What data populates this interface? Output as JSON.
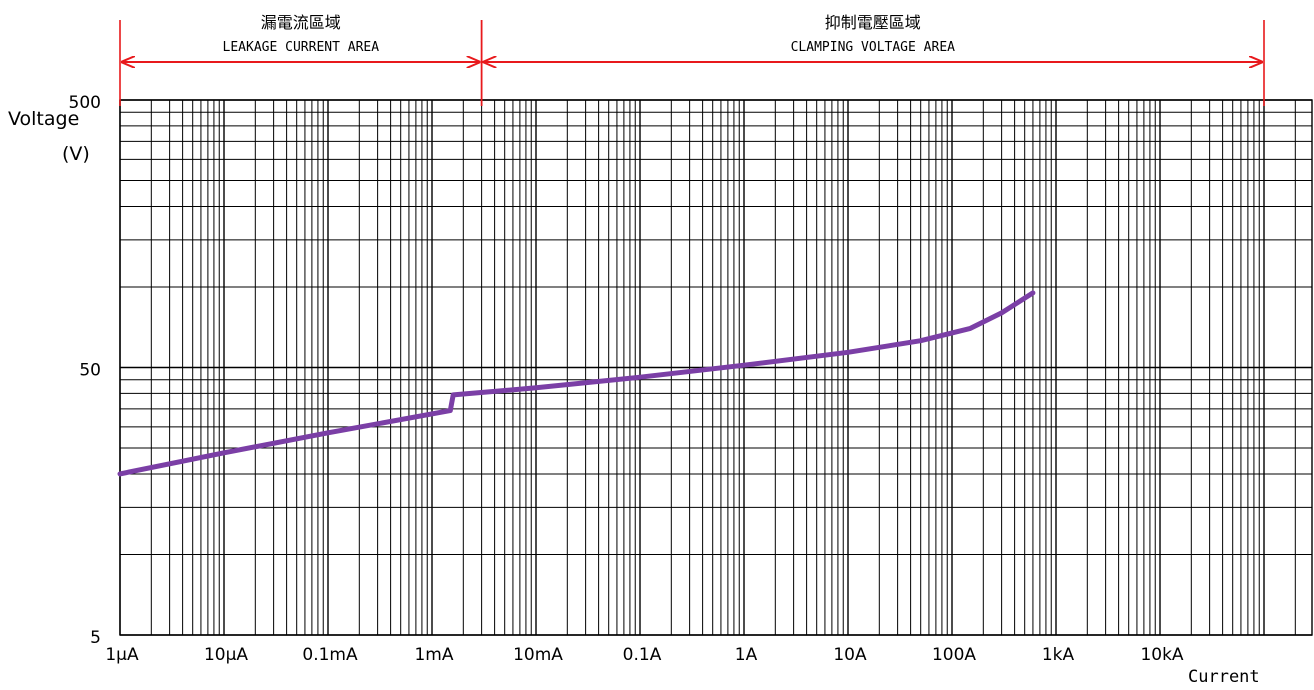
{
  "chart_data": {
    "type": "line",
    "xscale": "log",
    "yscale": "log",
    "xlabel": "Current",
    "ylabel": "Voltage",
    "ylabel_unit": "(V)",
    "xlim_amps": [
      1e-06,
      100000
    ],
    "ylim_volts": [
      5,
      500
    ],
    "grid": true,
    "x_ticks": [
      {
        "value": 1e-06,
        "label": "1μA"
      },
      {
        "value": 1e-05,
        "label": "10μA"
      },
      {
        "value": 0.0001,
        "label": "0.1mA"
      },
      {
        "value": 0.001,
        "label": "1mA"
      },
      {
        "value": 0.01,
        "label": "10mA"
      },
      {
        "value": 0.1,
        "label": "0.1A"
      },
      {
        "value": 1,
        "label": "1A"
      },
      {
        "value": 10,
        "label": "10A"
      },
      {
        "value": 100,
        "label": "100A"
      },
      {
        "value": 1000,
        "label": "1kA"
      },
      {
        "value": 10000,
        "label": "10kA"
      }
    ],
    "y_ticks": [
      {
        "value": 5,
        "label": "5"
      },
      {
        "value": 50,
        "label": "50"
      },
      {
        "value": 500,
        "label": "500"
      }
    ],
    "regions": [
      {
        "title": "漏電流區域",
        "subtitle": "LEAKAGE CURRENT AREA",
        "from_amps": 1e-06,
        "to_amps": 0.003,
        "color": "#e8191c"
      },
      {
        "title": "抑制電壓區域",
        "subtitle": "CLAMPING VOLTAGE AREA",
        "from_amps": 0.003,
        "to_amps": 100000,
        "color": "#e8191c"
      }
    ],
    "series": [
      {
        "color": "#7b3fa6",
        "points": [
          {
            "x": 1e-06,
            "y": 20
          },
          {
            "x": 1e-05,
            "y": 24
          },
          {
            "x": 0.0001,
            "y": 28.5
          },
          {
            "x": 0.0015,
            "y": 34.5
          },
          {
            "x": 0.0016,
            "y": 39.5
          },
          {
            "x": 0.01,
            "y": 42
          },
          {
            "x": 0.1,
            "y": 46
          },
          {
            "x": 1,
            "y": 51
          },
          {
            "x": 10,
            "y": 57
          },
          {
            "x": 50,
            "y": 63
          },
          {
            "x": 150,
            "y": 70
          },
          {
            "x": 300,
            "y": 80
          },
          {
            "x": 600,
            "y": 95
          }
        ]
      }
    ]
  }
}
